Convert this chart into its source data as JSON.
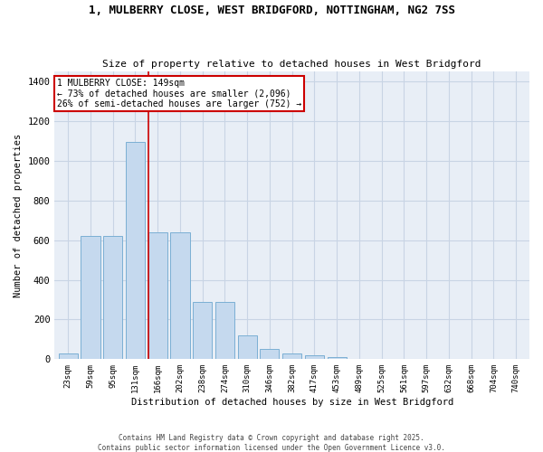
{
  "title_line1": "1, MULBERRY CLOSE, WEST BRIDGFORD, NOTTINGHAM, NG2 7SS",
  "title_line2": "Size of property relative to detached houses in West Bridgford",
  "xlabel": "Distribution of detached houses by size in West Bridgford",
  "ylabel": "Number of detached properties",
  "categories": [
    "23sqm",
    "59sqm",
    "95sqm",
    "131sqm",
    "166sqm",
    "202sqm",
    "238sqm",
    "274sqm",
    "310sqm",
    "346sqm",
    "382sqm",
    "417sqm",
    "453sqm",
    "489sqm",
    "525sqm",
    "561sqm",
    "597sqm",
    "632sqm",
    "668sqm",
    "704sqm",
    "740sqm"
  ],
  "values": [
    30,
    620,
    620,
    1095,
    640,
    640,
    290,
    290,
    120,
    50,
    28,
    22,
    12,
    0,
    0,
    0,
    0,
    0,
    0,
    0,
    0
  ],
  "bar_color": "#c5d9ee",
  "bar_edge_color": "#7bafd4",
  "vline_x": 3.6,
  "marker_label": "1 MULBERRY CLOSE: 149sqm",
  "pct_smaller": "73% of detached houses are smaller (2,096)",
  "pct_larger": "26% of semi-detached houses are larger (752)",
  "annotation_box_color": "#ffffff",
  "annotation_box_edge": "#cc0000",
  "vline_color": "#cc0000",
  "grid_color": "#c8d4e4",
  "background_color": "#e8eef6",
  "footer_line1": "Contains HM Land Registry data © Crown copyright and database right 2025.",
  "footer_line2": "Contains public sector information licensed under the Open Government Licence v3.0.",
  "ylim": [
    0,
    1450
  ],
  "yticks": [
    0,
    200,
    400,
    600,
    800,
    1000,
    1200,
    1400
  ]
}
